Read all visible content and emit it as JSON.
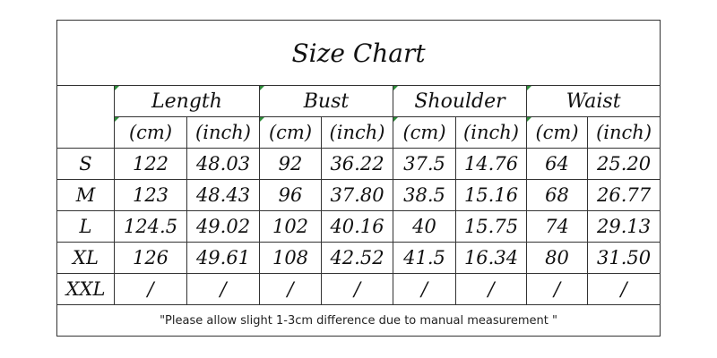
{
  "title": "Size Chart",
  "groups": [
    {
      "name": "Length",
      "units": [
        "(cm)",
        "(inch)"
      ]
    },
    {
      "name": "Bust",
      "units": [
        "(cm)",
        "(inch)"
      ]
    },
    {
      "name": "Shoulder",
      "units": [
        "(cm)",
        "(inch)"
      ]
    },
    {
      "name": "Waist",
      "units": [
        "(cm)",
        "(inch)"
      ]
    }
  ],
  "rows": [
    {
      "size": "S",
      "values": [
        "122",
        "48.03",
        "92",
        "36.22",
        "37.5",
        "14.76",
        "64",
        "25.20"
      ]
    },
    {
      "size": "M",
      "values": [
        "123",
        "48.43",
        "96",
        "37.80",
        "38.5",
        "15.16",
        "68",
        "26.77"
      ]
    },
    {
      "size": "L",
      "values": [
        "124.5",
        "49.02",
        "102",
        "40.16",
        "40",
        "15.75",
        "74",
        "29.13"
      ]
    },
    {
      "size": "XL",
      "values": [
        "126",
        "49.61",
        "108",
        "42.52",
        "41.5",
        "16.34",
        "80",
        "31.50"
      ]
    },
    {
      "size": "XXL",
      "values": [
        "/",
        "/",
        "/",
        "/",
        "/",
        "/",
        "/",
        "/"
      ]
    }
  ],
  "note": "\"Please allow slight 1-3cm difference due to manual measurement \""
}
